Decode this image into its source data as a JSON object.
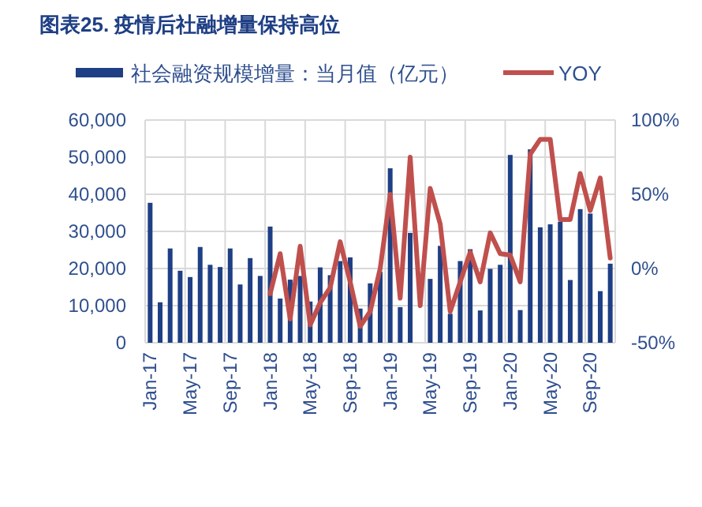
{
  "chart_data": {
    "type": "bar",
    "title": "图表25.  疫情后社融增量保持高位",
    "categories": [
      "Jan-17",
      null,
      null,
      null,
      "May-17",
      null,
      null,
      null,
      "Sep-17",
      null,
      null,
      null,
      "Jan-18",
      null,
      null,
      null,
      "May-18",
      null,
      null,
      null,
      "Sep-18",
      null,
      null,
      null,
      "Jan-19",
      null,
      null,
      null,
      "May-19",
      null,
      null,
      null,
      "Sep-19",
      null,
      null,
      null,
      "Jan-20",
      null,
      null,
      null,
      "May-20",
      null,
      null,
      null,
      "Sep-20",
      null,
      null
    ],
    "series": [
      {
        "name": "社会融资规模增量：当月值（亿元）",
        "color": "#1f3f85",
        "values": [
          37700,
          10900,
          25400,
          19400,
          17700,
          25800,
          21000,
          20400,
          25400,
          15700,
          22800,
          18000,
          31300,
          11900,
          17000,
          18000,
          11100,
          20300,
          18200,
          22000,
          23000,
          9200,
          16000,
          19100,
          47000,
          9600,
          29600,
          null,
          17200,
          26100,
          7800,
          22000,
          25200,
          8700,
          19900,
          21000,
          50600,
          8800,
          52100,
          31100,
          31900,
          32600,
          16900,
          36000,
          34800,
          13900,
          21300
        ]
      },
      {
        "name": "YOY",
        "type": "line",
        "axis": "y2",
        "color": "#c0504d",
        "values": [
          null,
          null,
          null,
          null,
          null,
          null,
          null,
          null,
          null,
          null,
          null,
          null,
          -17,
          10,
          -34,
          15,
          -38,
          -23,
          -13,
          18,
          -9,
          -39,
          -29,
          0,
          50,
          -20,
          75,
          -25,
          54,
          30,
          -29,
          -9,
          11,
          -9,
          24,
          10,
          9,
          -9,
          77,
          87,
          87,
          33,
          33,
          64,
          39,
          61,
          7
        ]
      }
    ],
    "ylim": [
      0,
      60000
    ],
    "yticks": [
      {
        "value": 0,
        "label": "0"
      },
      {
        "value": 10000,
        "label": "10,000"
      },
      {
        "value": 20000,
        "label": "20,000"
      },
      {
        "value": 30000,
        "label": "30,000"
      },
      {
        "value": 40000,
        "label": "40,000"
      },
      {
        "value": 50000,
        "label": "50,000"
      },
      {
        "value": 60000,
        "label": "60,000"
      }
    ],
    "y2lim": [
      -50,
      100
    ],
    "y2ticks": [
      {
        "value": -50,
        "label": "-50%"
      },
      {
        "value": 0,
        "label": "0%"
      },
      {
        "value": 50,
        "label": "50%"
      },
      {
        "value": 100,
        "label": "100%"
      }
    ],
    "grid": true,
    "legend": "top"
  }
}
